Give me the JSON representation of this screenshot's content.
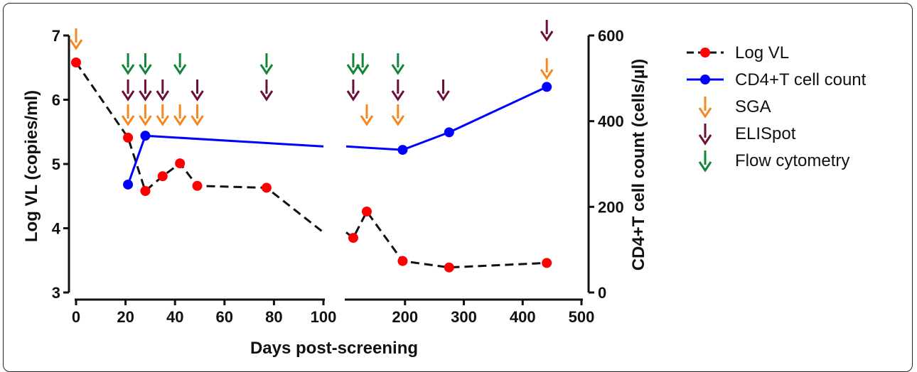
{
  "chart_data": {
    "type": "line",
    "xlabel": "Days post-screening",
    "ylabel_left": "Log VL (copies/ml)",
    "ylabel_right": "CD4+T cell count (cells/µl)",
    "x_segments": [
      {
        "range": [
          0,
          100
        ],
        "ticks": [
          "0",
          "20",
          "40",
          "60",
          "80",
          "100"
        ]
      },
      {
        "range": [
          100,
          500
        ],
        "ticks": [
          "200",
          "300",
          "400",
          "500"
        ]
      }
    ],
    "y_left": {
      "range": [
        3,
        7
      ],
      "ticks": [
        "3",
        "4",
        "5",
        "6",
        "7"
      ]
    },
    "y_right": {
      "range": [
        0,
        600
      ],
      "ticks": [
        "0",
        "200",
        "400",
        "600"
      ]
    },
    "series": [
      {
        "name": "Log VL",
        "axis": "left",
        "color": "#ff0000",
        "line_color": "#111111",
        "dashed": true,
        "points": [
          [
            0,
            6.58
          ],
          [
            21,
            5.41
          ],
          [
            28,
            4.58
          ],
          [
            35,
            4.81
          ],
          [
            42,
            5.01
          ],
          [
            49,
            4.66
          ],
          [
            77,
            4.63
          ],
          [
            112,
            3.85
          ],
          [
            135,
            4.26
          ],
          [
            196,
            3.49
          ],
          [
            275,
            3.39
          ],
          [
            441,
            3.46
          ]
        ]
      },
      {
        "name": "CD4+T cell count",
        "axis": "right",
        "color": "#0000ff",
        "dashed": false,
        "points": [
          [
            21,
            252
          ],
          [
            28,
            366
          ],
          [
            196,
            333
          ],
          [
            275,
            374
          ],
          [
            441,
            480
          ]
        ]
      }
    ],
    "arrow_series": [
      {
        "name": "SGA",
        "color": "#f5881f",
        "days": [
          0,
          21,
          28,
          35,
          42,
          49,
          135,
          188,
          441
        ]
      },
      {
        "name": "ELISpot",
        "color": "#6b0f3a",
        "days": [
          21,
          28,
          35,
          49,
          77,
          112,
          188,
          265,
          441
        ]
      },
      {
        "name": "Flow cytometry",
        "color": "#13843a",
        "days": [
          21,
          28,
          42,
          77,
          112,
          128,
          188
        ]
      }
    ],
    "legend_position": "right"
  }
}
